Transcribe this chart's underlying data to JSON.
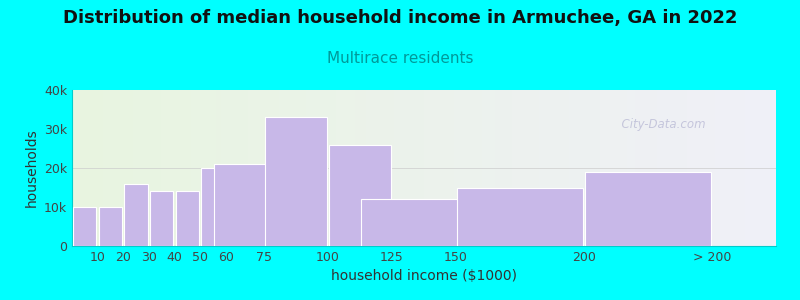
{
  "title": "Distribution of median household income in Armuchee, GA in 2022",
  "subtitle": "Multirace residents",
  "xlabel": "household income ($1000)",
  "ylabel": "households",
  "background_outer": "#00FFFF",
  "background_inner_left": "#e8f5e0",
  "background_inner_right": "#f0f0f8",
  "bar_color": "#c8b8e8",
  "bar_edge_color": "#ffffff",
  "categories": [
    "10",
    "20",
    "30",
    "40",
    "50",
    "60",
    "75",
    "100",
    "125",
    "150",
    "200",
    "> 200"
  ],
  "bar_lefts": [
    5,
    15,
    25,
    35,
    45,
    55,
    67.5,
    87.5,
    112.5,
    137.5,
    175,
    225
  ],
  "bar_widths": [
    9,
    9,
    9,
    9,
    9,
    9,
    24,
    24,
    24,
    49,
    49,
    49
  ],
  "values": [
    10000,
    10000,
    16000,
    14000,
    14000,
    20000,
    21000,
    33000,
    26000,
    12000,
    15000,
    19000
  ],
  "xtick_positions": [
    10,
    20,
    30,
    40,
    50,
    60,
    75,
    100,
    125,
    150,
    200,
    250
  ],
  "xtick_labels": [
    "10",
    "20",
    "30",
    "40",
    "50",
    "60",
    "75",
    "100",
    "125",
    "150",
    "200",
    "> 200"
  ],
  "ylim": [
    0,
    40000
  ],
  "xlim": [
    0,
    275
  ],
  "yticks": [
    0,
    10000,
    20000,
    30000,
    40000
  ],
  "ytick_labels": [
    "0",
    "10k",
    "20k",
    "30k",
    "40k"
  ],
  "title_fontsize": 13,
  "subtitle_fontsize": 11,
  "subtitle_color": "#009999",
  "axis_label_fontsize": 10,
  "tick_fontsize": 9,
  "watermark_text": "  City-Data.com",
  "watermark_color": "#aaaacc",
  "watermark_alpha": 0.6
}
